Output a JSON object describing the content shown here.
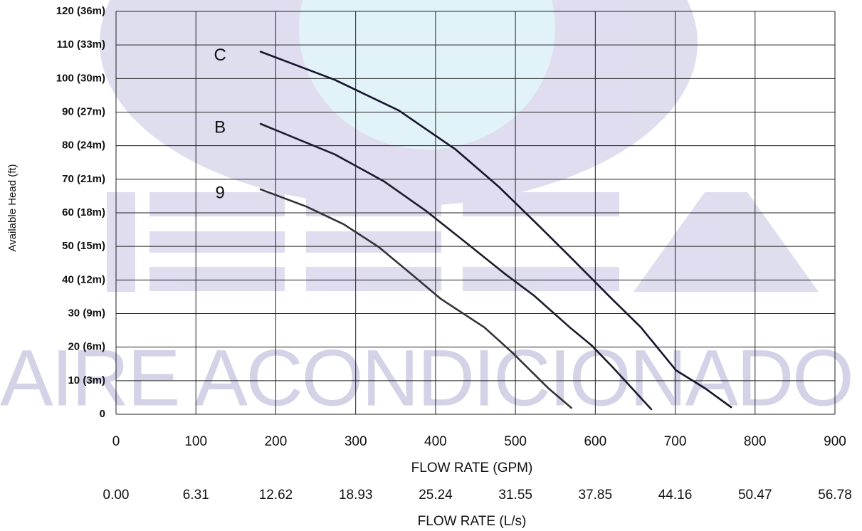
{
  "chart_data": {
    "type": "line",
    "watermark": "AIRE ACONDICIONADO",
    "xlabel": "FLOW RATE (GPM)",
    "x2label": "FLOW RATE (L/s)",
    "ylabel": "Available Head  (ft)",
    "xlim": [
      0,
      900
    ],
    "xticks": [
      0,
      100,
      200,
      300,
      400,
      500,
      600,
      700,
      800,
      900
    ],
    "x2lim": [
      0,
      56.78
    ],
    "x2ticks": [
      {
        "value": 0,
        "label": "0.00"
      },
      6.31,
      12.62,
      18.93,
      25.24,
      31.55,
      37.85,
      44.16,
      50.47,
      56.78
    ],
    "ylim": [
      0,
      120
    ],
    "yticks": [
      {
        "value": 0,
        "label": "0"
      },
      {
        "value": 10,
        "label": "10 (3m)"
      },
      {
        "value": 20,
        "label": "20 (6m)"
      },
      {
        "value": 30,
        "label": "30 (9m)"
      },
      {
        "value": 40,
        "label": "40 (12m)"
      },
      {
        "value": 50,
        "label": "50 (15m)"
      },
      {
        "value": 60,
        "label": "60 (18m)"
      },
      {
        "value": 70,
        "label": "70 (21m)"
      },
      {
        "value": 80,
        "label": "80 (24m)"
      },
      {
        "value": 90,
        "label": "90 (27m)"
      },
      {
        "value": 100,
        "label": "100 (30m)"
      },
      {
        "value": 110,
        "label": "110 (33m)"
      },
      {
        "value": 120,
        "label": "120 (36m)"
      }
    ],
    "grid": true,
    "series": [
      {
        "name": "C",
        "color": "#15152b",
        "x": [
          181,
          274,
          354,
          425,
          479,
          532,
          568,
          621,
          657,
          701,
          737,
          770
        ],
        "values": [
          108,
          99.6,
          90.5,
          78.9,
          67.8,
          55.5,
          47,
          34.3,
          25.9,
          13.1,
          7.8,
          2.1
        ]
      },
      {
        "name": "B",
        "color": "#1c1c2c",
        "x": [
          181,
          274,
          336,
          389,
          443,
          487,
          523,
          568,
          595,
          621,
          670
        ],
        "values": [
          86.5,
          77.4,
          69.3,
          60.4,
          50.2,
          41.8,
          35.4,
          25.9,
          20.6,
          14.2,
          1.5
        ]
      },
      {
        "name": "9",
        "color": "#333338",
        "x": [
          181,
          238,
          285,
          329,
          372,
          407,
          461,
          496,
          541,
          570
        ],
        "values": [
          67,
          61.9,
          56.6,
          49.8,
          41.3,
          34.3,
          25.9,
          18.4,
          7.8,
          1.9
        ]
      }
    ]
  }
}
